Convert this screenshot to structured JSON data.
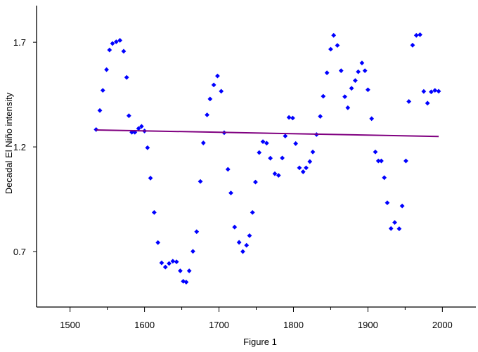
{
  "chart_data": {
    "type": "scatter",
    "title": "",
    "xlabel": "Figure 1",
    "ylabel": "Decadal El Niño intensity",
    "xlim": [
      1455,
      2045
    ],
    "ylim": [
      0.435,
      1.875
    ],
    "x_ticks": [
      1500,
      1600,
      1700,
      1800,
      1900,
      2000
    ],
    "y_ticks": [
      0.7,
      1.2,
      1.7
    ],
    "x_tick_labels": [
      "1500",
      "1600",
      "1700",
      "1800",
      "1900",
      "2000"
    ],
    "y_tick_labels": [
      "0.7",
      "1.2",
      "1.7"
    ],
    "grid": false,
    "colors": {
      "points": "#0000ff",
      "trend": "#800080",
      "axis": "#000000"
    },
    "series": [
      {
        "type": "scatter",
        "x": [
          1535,
          1540,
          1544,
          1549,
          1553,
          1557,
          1562,
          1567,
          1572,
          1576,
          1579,
          1583,
          1587,
          1592,
          1596,
          1600,
          1604,
          1608,
          1613,
          1618,
          1623,
          1628,
          1633,
          1638,
          1643,
          1648,
          1652,
          1656,
          1660,
          1665,
          1670,
          1675,
          1679,
          1684,
          1688,
          1693,
          1698,
          1703,
          1707,
          1712,
          1716,
          1721,
          1727,
          1732,
          1737,
          1741,
          1745,
          1749,
          1754,
          1759,
          1764,
          1769,
          1775,
          1780,
          1785,
          1789,
          1794,
          1799,
          1803,
          1808,
          1813,
          1817,
          1822,
          1826,
          1831,
          1836,
          1840,
          1845,
          1850,
          1854,
          1859,
          1864,
          1869,
          1873,
          1878,
          1883,
          1887,
          1892,
          1896,
          1900,
          1905,
          1910,
          1914,
          1918,
          1922,
          1926,
          1931,
          1936,
          1942,
          1946,
          1951,
          1955,
          1960,
          1965,
          1970,
          1975,
          1980,
          1985,
          1990,
          1995
        ],
        "y": [
          1.283,
          1.374,
          1.47,
          1.569,
          1.663,
          1.694,
          1.702,
          1.709,
          1.657,
          1.532,
          1.349,
          1.27,
          1.27,
          1.288,
          1.298,
          1.276,
          1.196,
          1.051,
          0.887,
          0.743,
          0.646,
          0.626,
          0.643,
          0.654,
          0.651,
          0.608,
          0.558,
          0.554,
          0.608,
          0.701,
          0.795,
          1.035,
          1.219,
          1.353,
          1.429,
          1.496,
          1.539,
          1.466,
          1.268,
          1.093,
          0.98,
          0.817,
          0.744,
          0.7,
          0.73,
          0.776,
          0.887,
          1.032,
          1.173,
          1.225,
          1.218,
          1.146,
          1.072,
          1.064,
          1.147,
          1.252,
          1.341,
          1.338,
          1.216,
          1.1,
          1.081,
          1.1,
          1.13,
          1.176,
          1.259,
          1.346,
          1.442,
          1.554,
          1.667,
          1.733,
          1.685,
          1.564,
          1.44,
          1.387,
          1.48,
          1.517,
          1.559,
          1.601,
          1.564,
          1.473,
          1.335,
          1.176,
          1.133,
          1.133,
          1.053,
          0.933,
          0.81,
          0.839,
          0.809,
          0.918,
          1.133,
          1.417,
          1.686,
          1.733,
          1.736,
          1.465,
          1.409,
          1.463,
          1.47,
          1.466
        ]
      },
      {
        "type": "line",
        "x": [
          1535,
          1995
        ],
        "y": [
          1.281,
          1.25
        ]
      }
    ]
  }
}
